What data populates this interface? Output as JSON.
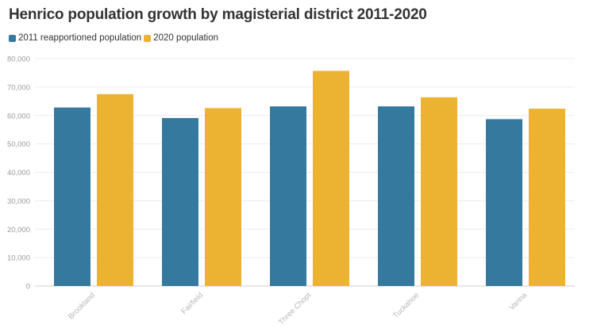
{
  "chart_data": {
    "type": "bar",
    "title": "Henrico population growth by magisterial district 2011-2020",
    "xlabel": "",
    "ylabel": "",
    "categories": [
      "Brookland",
      "Fairfield",
      "Three Chopt",
      "Tuckahoe",
      "Varina"
    ],
    "series": [
      {
        "name": "2011 reapportioned population",
        "color": "#36799f",
        "values": [
          62800,
          59100,
          63200,
          63200,
          58700
        ]
      },
      {
        "name": "2020 population",
        "color": "#ecb333",
        "values": [
          67500,
          62600,
          75700,
          66400,
          62400
        ]
      }
    ],
    "ylim": [
      0,
      80000
    ],
    "yticks": [
      0,
      10000,
      20000,
      30000,
      40000,
      50000,
      60000,
      70000,
      80000
    ],
    "ytick_labels": [
      "0",
      "10,000",
      "20,000",
      "30,000",
      "40,000",
      "50,000",
      "60,000",
      "70,000",
      "80,000"
    ],
    "grid": true,
    "legend_position": "top-left"
  }
}
